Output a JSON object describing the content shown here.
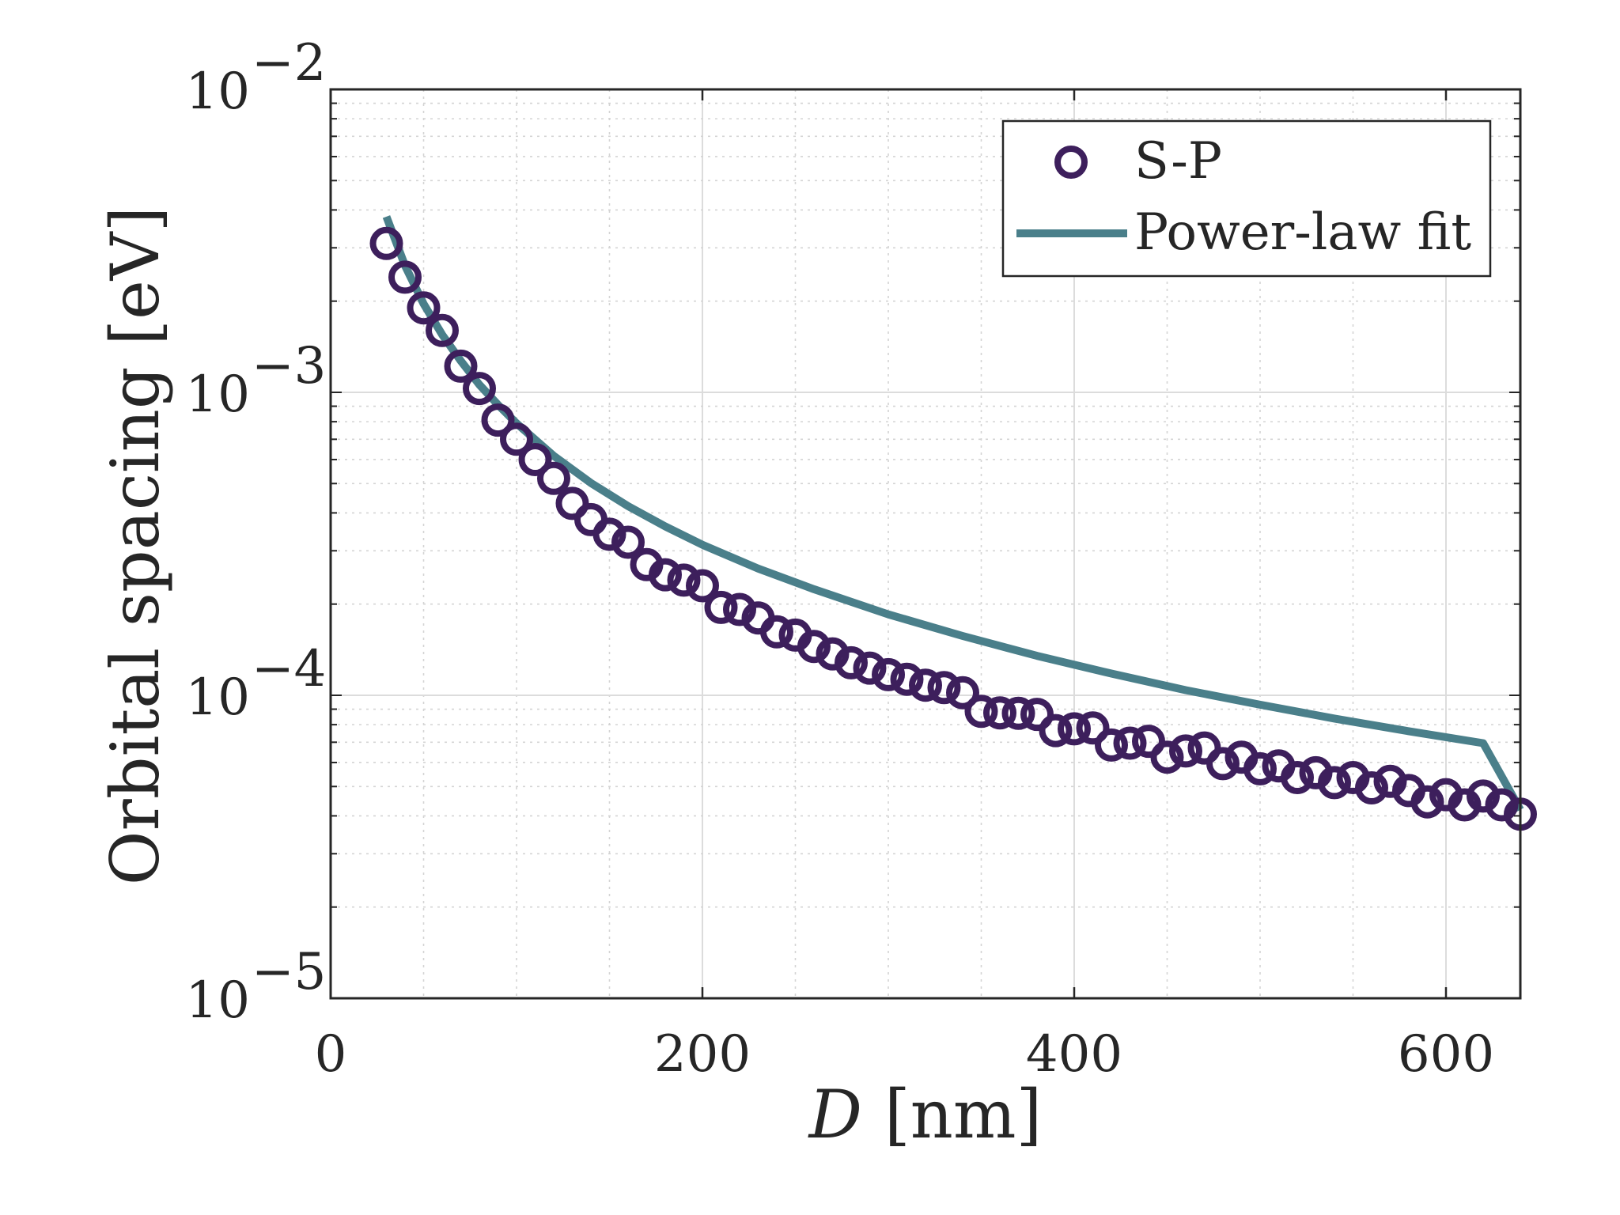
{
  "chart_data": {
    "type": "scatter",
    "title": "",
    "xlabel_italic": "D",
    "xlabel_units": "[nm]",
    "ylabel": "Orbital spacing [eV]",
    "xlim": [
      0,
      640
    ],
    "ylim": [
      1e-05,
      0.01
    ],
    "yscale": "log",
    "grid": true,
    "minor_grid": true,
    "legend_position": "top-right",
    "xticks": [
      {
        "value": 0,
        "label": "0"
      },
      {
        "value": 200,
        "label": "200"
      },
      {
        "value": 400,
        "label": "400"
      },
      {
        "value": 600,
        "label": "600"
      }
    ],
    "yticks": [
      {
        "value": 1e-05,
        "base": "10",
        "exp": "−5"
      },
      {
        "value": 0.0001,
        "base": "10",
        "exp": "−4"
      },
      {
        "value": 0.001,
        "base": "10",
        "exp": "−3"
      },
      {
        "value": 0.01,
        "base": "10",
        "exp": "−2"
      }
    ],
    "series": [
      {
        "name": "S-P",
        "kind": "markers",
        "marker": "circle-open",
        "color": "#3d1f5c",
        "x": [
          30,
          40,
          50,
          60,
          70,
          80,
          90,
          100,
          110,
          120,
          130,
          140,
          150,
          160,
          170,
          180,
          190,
          200,
          210,
          220,
          230,
          240,
          250,
          260,
          270,
          280,
          290,
          300,
          310,
          320,
          330,
          340,
          350,
          360,
          370,
          380,
          390,
          400,
          410,
          420,
          430,
          440,
          450,
          460,
          470,
          480,
          490,
          500,
          510,
          520,
          530,
          540,
          550,
          560,
          570,
          580,
          590,
          600,
          610,
          620,
          630,
          640
        ],
        "y": [
          0.0031,
          0.0024,
          0.0019,
          0.0016,
          0.00122,
          0.00103,
          0.00081,
          0.0007,
          0.0006,
          0.00052,
          0.00043,
          0.00038,
          0.00034,
          0.00032,
          0.00027,
          0.00025,
          0.00024,
          0.00023,
          0.000195,
          0.000192,
          0.00018,
          0.000162,
          0.000158,
          0.000145,
          0.000137,
          0.000128,
          0.000123,
          0.000117,
          0.000113,
          0.000108,
          0.000106,
          0.000102,
          8.85e-05,
          8.75e-05,
          8.72e-05,
          8.65e-05,
          7.65e-05,
          7.75e-05,
          7.8e-05,
          6.85e-05,
          6.95e-05,
          7.05e-05,
          6.25e-05,
          6.55e-05,
          6.7e-05,
          5.95e-05,
          6.25e-05,
          5.72e-05,
          5.85e-05,
          5.35e-05,
          5.55e-05,
          5.15e-05,
          5.35e-05,
          4.95e-05,
          5.2e-05,
          4.85e-05,
          4.45e-05,
          4.7e-05,
          4.35e-05,
          4.65e-05,
          4.35e-05,
          4.05e-05
        ]
      },
      {
        "name": "Power-law fit",
        "kind": "line",
        "color": "#4a7f8a",
        "x": [
          30,
          40,
          50,
          60,
          70,
          80,
          90,
          100,
          120,
          140,
          160,
          180,
          200,
          230,
          260,
          300,
          340,
          380,
          420,
          460,
          500,
          540,
          580,
          620,
          640
        ],
        "y": [
          0.0038,
          0.00262,
          0.00196,
          0.00155,
          0.00127,
          0.00106,
          0.00091,
          0.00079,
          0.000617,
          0.000502,
          0.000421,
          0.000361,
          0.000314,
          0.000262,
          0.000224,
          0.000185,
          0.000157,
          0.000135,
          0.000118,
          0.000104,
          9.31e-05,
          8.38e-05,
          7.61e-05,
          6.95e-05,
          4.19e-05
        ]
      }
    ]
  }
}
